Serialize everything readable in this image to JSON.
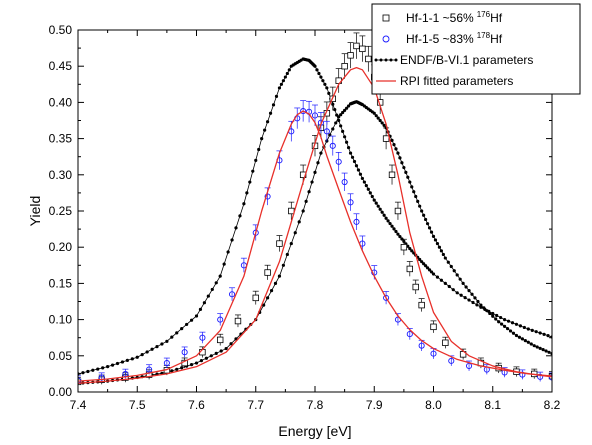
{
  "chart_data": {
    "type": "scatter",
    "xlabel": "Energy [eV]",
    "ylabel": "Yield",
    "xlim": [
      7.4,
      8.2
    ],
    "ylim": [
      0.0,
      0.5
    ],
    "xticks": [
      "7.4",
      "7.5",
      "7.6",
      "7.7",
      "7.8",
      "7.9",
      "8.0",
      "8.1",
      "8.2"
    ],
    "yticks": [
      "0.00",
      "0.05",
      "0.10",
      "0.15",
      "0.20",
      "0.25",
      "0.30",
      "0.35",
      "0.40",
      "0.45",
      "0.50"
    ],
    "legend_position": "top-right",
    "grid": false,
    "series": [
      {
        "key": "hf11",
        "legend_main": "Hf-1-1 ~56%",
        "legend_sup": "176",
        "legend_tail": "Hf",
        "marker": "open-square",
        "color": "#000000",
        "x": [
          7.4,
          7.44,
          7.48,
          7.52,
          7.55,
          7.58,
          7.61,
          7.64,
          7.67,
          7.7,
          7.72,
          7.74,
          7.76,
          7.78,
          7.8,
          7.81,
          7.82,
          7.83,
          7.84,
          7.85,
          7.86,
          7.87,
          7.88,
          7.89,
          7.9,
          7.91,
          7.92,
          7.93,
          7.94,
          7.95,
          7.96,
          7.97,
          7.98,
          8.0,
          8.02,
          8.05,
          8.08,
          8.11,
          8.14,
          8.17,
          8.2
        ],
        "y": [
          0.014,
          0.017,
          0.02,
          0.024,
          0.03,
          0.04,
          0.055,
          0.072,
          0.098,
          0.13,
          0.165,
          0.205,
          0.25,
          0.3,
          0.34,
          0.365,
          0.385,
          0.405,
          0.43,
          0.45,
          0.465,
          0.478,
          0.474,
          0.46,
          0.435,
          0.4,
          0.35,
          0.3,
          0.25,
          0.2,
          0.17,
          0.145,
          0.12,
          0.09,
          0.068,
          0.052,
          0.04,
          0.033,
          0.028,
          0.025,
          0.022
        ]
      },
      {
        "key": "hf15",
        "legend_main": "Hf-1-5 ~83%",
        "legend_sup": "178",
        "legend_tail": "Hf",
        "marker": "open-circle",
        "color": "#1a1aff",
        "x": [
          7.4,
          7.44,
          7.48,
          7.52,
          7.55,
          7.58,
          7.61,
          7.64,
          7.66,
          7.68,
          7.7,
          7.72,
          7.74,
          7.76,
          7.77,
          7.78,
          7.79,
          7.8,
          7.81,
          7.82,
          7.83,
          7.84,
          7.85,
          7.86,
          7.87,
          7.88,
          7.9,
          7.92,
          7.94,
          7.96,
          7.98,
          8.0,
          8.03,
          8.06,
          8.09,
          8.12,
          8.15,
          8.18,
          8.2
        ],
        "y": [
          0.016,
          0.02,
          0.025,
          0.031,
          0.04,
          0.055,
          0.075,
          0.1,
          0.135,
          0.175,
          0.22,
          0.27,
          0.32,
          0.36,
          0.378,
          0.388,
          0.387,
          0.382,
          0.372,
          0.36,
          0.34,
          0.318,
          0.29,
          0.262,
          0.235,
          0.205,
          0.165,
          0.13,
          0.1,
          0.08,
          0.064,
          0.053,
          0.043,
          0.036,
          0.031,
          0.027,
          0.024,
          0.021,
          0.02
        ]
      },
      {
        "key": "endf",
        "legend_main": "ENDF/B-VI.1 parameters",
        "marker": "dotted-line",
        "color": "#000000",
        "curves": [
          {
            "x": [
              7.4,
              7.45,
              7.5,
              7.55,
              7.6,
              7.64,
              7.68,
              7.71,
              7.74,
              7.76,
              7.78,
              7.79,
              7.8,
              7.82,
              7.84,
              7.86,
              7.88,
              7.9,
              7.92,
              7.94,
              7.96,
              7.98,
              8.0,
              8.04,
              8.08,
              8.12,
              8.16,
              8.2
            ],
            "y": [
              0.025,
              0.035,
              0.048,
              0.07,
              0.105,
              0.16,
              0.26,
              0.35,
              0.42,
              0.45,
              0.46,
              0.458,
              0.45,
              0.42,
              0.375,
              0.33,
              0.295,
              0.265,
              0.24,
              0.218,
              0.198,
              0.18,
              0.163,
              0.137,
              0.117,
              0.1,
              0.087,
              0.076
            ]
          },
          {
            "x": [
              7.4,
              7.45,
              7.5,
              7.55,
              7.6,
              7.65,
              7.7,
              7.74,
              7.78,
              7.81,
              7.84,
              7.86,
              7.87,
              7.88,
              7.9,
              7.92,
              7.94,
              7.96,
              7.98,
              8.0,
              8.02,
              8.05,
              8.08,
              8.11,
              8.14,
              8.17,
              8.2
            ],
            "y": [
              0.012,
              0.015,
              0.02,
              0.027,
              0.04,
              0.06,
              0.1,
              0.16,
              0.25,
              0.33,
              0.38,
              0.398,
              0.401,
              0.397,
              0.385,
              0.365,
              0.33,
              0.29,
              0.25,
              0.215,
              0.185,
              0.15,
              0.12,
              0.097,
              0.078,
              0.064,
              0.053
            ]
          }
        ]
      },
      {
        "key": "rpi",
        "legend_main": "RPI fitted parameters",
        "marker": "solid-line",
        "color": "#e8302a",
        "curves": [
          {
            "x": [
              7.4,
              7.45,
              7.5,
              7.55,
              7.6,
              7.64,
              7.68,
              7.71,
              7.74,
              7.76,
              7.77,
              7.78,
              7.79,
              7.8,
              7.81,
              7.82,
              7.84,
              7.86,
              7.88,
              7.9,
              7.92,
              7.94,
              7.96,
              7.98,
              8.0,
              8.04,
              8.08,
              8.12,
              8.16,
              8.2
            ],
            "y": [
              0.015,
              0.018,
              0.023,
              0.031,
              0.05,
              0.085,
              0.16,
              0.25,
              0.33,
              0.37,
              0.383,
              0.388,
              0.384,
              0.372,
              0.352,
              0.326,
              0.28,
              0.235,
              0.195,
              0.16,
              0.13,
              0.105,
              0.086,
              0.071,
              0.06,
              0.045,
              0.036,
              0.03,
              0.025,
              0.022
            ]
          },
          {
            "x": [
              7.4,
              7.45,
              7.5,
              7.55,
              7.6,
              7.65,
              7.7,
              7.74,
              7.78,
              7.81,
              7.84,
              7.86,
              7.87,
              7.88,
              7.9,
              7.92,
              7.94,
              7.96,
              7.98,
              8.0,
              8.03,
              8.06,
              8.1,
              8.14,
              8.18,
              8.2
            ],
            "y": [
              0.012,
              0.015,
              0.019,
              0.025,
              0.035,
              0.055,
              0.1,
              0.18,
              0.29,
              0.37,
              0.425,
              0.445,
              0.448,
              0.445,
              0.42,
              0.37,
              0.3,
              0.22,
              0.16,
              0.11,
              0.07,
              0.05,
              0.036,
              0.028,
              0.023,
              0.021
            ]
          }
        ]
      }
    ]
  }
}
